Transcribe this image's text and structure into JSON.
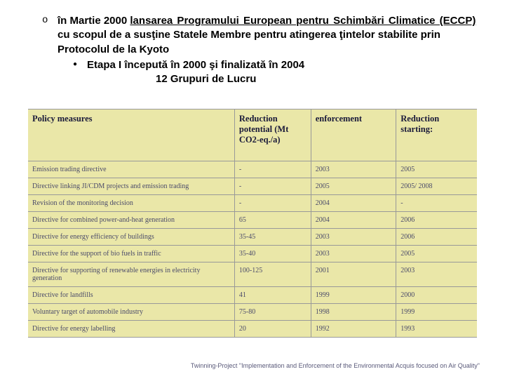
{
  "bullet": {
    "line1_bold": "în Martie 2000 ",
    "line1_underline": "lansarea Programului European pentru Schimbări Climatice (ECCP) ",
    "line1_rest": "cu scopul de a susţine Statele Membre pentru atingerea ţintelor stabilite prin Protocolul de la Kyoto",
    "sub1": "Etapa I începută în 2000 şi finalizată în 2004",
    "sub2": "12 Grupuri de Lucru"
  },
  "table": {
    "headers": {
      "c1": "Policy measures",
      "c2": "Reduction potential (Mt CO2-eq./a)",
      "c3": "enforcement",
      "c4": "Reduction starting:"
    },
    "rows": [
      {
        "c1": "Emission trading directive",
        "c2": "-",
        "c3": "2003",
        "c4": "2005"
      },
      {
        "c1": "Directive linking JI/CDM projects and emission trading",
        "c2": "-",
        "c3": "2005",
        "c4": "2005/ 2008"
      },
      {
        "c1": "Revision of the monitoring decision",
        "c2": "-",
        "c3": "2004",
        "c4": "-"
      },
      {
        "c1": "Directive for combined power-and-heat generation",
        "c2": "65",
        "c3": "2004",
        "c4": "2006"
      },
      {
        "c1": "Directive for energy efficiency of buildings",
        "c2": "35-45",
        "c3": "2003",
        "c4": "2006"
      },
      {
        "c1": "Directive for the support of bio fuels in traffic",
        "c2": "35-40",
        "c3": "2003",
        "c4": "2005"
      },
      {
        "c1": "Directive for supporting of renewable energies in electricity generation",
        "c2": "100-125",
        "c3": "2001",
        "c4": "2003"
      },
      {
        "c1": "Directive for landfills",
        "c2": "41",
        "c3": "1999",
        "c4": "2000"
      },
      {
        "c1": "Voluntary target of automobile industry",
        "c2": "75-80",
        "c3": "1998",
        "c4": "1999"
      },
      {
        "c1": "Directive for energy labelling",
        "c2": "20",
        "c3": "1992",
        "c4": "1993"
      }
    ]
  },
  "footer": "Twinning-Project \"Implementation and Enforcement of the Environmental Acquis focused on Air Quality\"",
  "colors": {
    "table_bg": "#eae7a8",
    "border": "#999999",
    "header_text": "#1a1a3a",
    "cell_text": "#4a4a6a"
  }
}
